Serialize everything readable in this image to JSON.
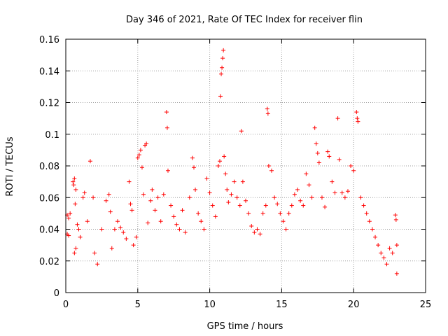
{
  "chart_data": {
    "type": "scatter",
    "title": "Day 346 of 2021, Rate Of TEC Index for receiver flin",
    "xlabel": "GPS time / hours",
    "ylabel": "ROTI / TECUs",
    "xlim": [
      0,
      25
    ],
    "ylim": [
      0,
      0.16
    ],
    "x_ticks": [
      0,
      5,
      10,
      15,
      20,
      25
    ],
    "x_tick_labels": [
      "0",
      "5",
      "10",
      "15",
      "20",
      "25"
    ],
    "y_ticks": [
      0,
      0.02,
      0.04,
      0.06,
      0.08,
      0.1,
      0.12,
      0.14,
      0.16
    ],
    "y_tick_labels": [
      "0",
      "0.02",
      "0.04",
      "0.06",
      "0.08",
      "0.1",
      "0.12",
      "0.14",
      "0.16"
    ],
    "grid": true,
    "marker": "+",
    "color": "#ff0000",
    "series": [
      {
        "points": [
          [
            0.1,
            0.049
          ],
          [
            0.2,
            0.047
          ],
          [
            0.1,
            0.037
          ],
          [
            0.2,
            0.036
          ],
          [
            0.3,
            0.05
          ],
          [
            0.5,
            0.07
          ],
          [
            0.55,
            0.068
          ],
          [
            0.6,
            0.072
          ],
          [
            0.7,
            0.065
          ],
          [
            0.65,
            0.056
          ],
          [
            0.6,
            0.025
          ],
          [
            0.7,
            0.028
          ],
          [
            0.8,
            0.043
          ],
          [
            0.9,
            0.04
          ],
          [
            1.0,
            0.035
          ],
          [
            1.2,
            0.06
          ],
          [
            1.3,
            0.063
          ],
          [
            1.5,
            0.045
          ],
          [
            1.7,
            0.083
          ],
          [
            1.9,
            0.06
          ],
          [
            2.0,
            0.025
          ],
          [
            2.2,
            0.018
          ],
          [
            2.5,
            0.04
          ],
          [
            2.8,
            0.058
          ],
          [
            3.0,
            0.062
          ],
          [
            3.1,
            0.051
          ],
          [
            3.2,
            0.028
          ],
          [
            3.4,
            0.04
          ],
          [
            3.6,
            0.045
          ],
          [
            3.8,
            0.041
          ],
          [
            4.0,
            0.038
          ],
          [
            4.2,
            0.034
          ],
          [
            4.4,
            0.07
          ],
          [
            4.5,
            0.056
          ],
          [
            4.6,
            0.052
          ],
          [
            4.7,
            0.03
          ],
          [
            4.9,
            0.035
          ],
          [
            5.0,
            0.085
          ],
          [
            5.1,
            0.087
          ],
          [
            5.2,
            0.09
          ],
          [
            5.3,
            0.079
          ],
          [
            5.4,
            0.062
          ],
          [
            5.5,
            0.093
          ],
          [
            5.6,
            0.094
          ],
          [
            5.7,
            0.044
          ],
          [
            5.9,
            0.058
          ],
          [
            6.0,
            0.065
          ],
          [
            6.2,
            0.052
          ],
          [
            6.4,
            0.06
          ],
          [
            6.6,
            0.045
          ],
          [
            6.8,
            0.062
          ],
          [
            7.0,
            0.114
          ],
          [
            7.05,
            0.104
          ],
          [
            7.1,
            0.077
          ],
          [
            7.3,
            0.055
          ],
          [
            7.5,
            0.048
          ],
          [
            7.7,
            0.043
          ],
          [
            7.9,
            0.04
          ],
          [
            8.1,
            0.052
          ],
          [
            8.3,
            0.038
          ],
          [
            8.6,
            0.06
          ],
          [
            8.8,
            0.085
          ],
          [
            8.9,
            0.079
          ],
          [
            9.0,
            0.065
          ],
          [
            9.2,
            0.05
          ],
          [
            9.4,
            0.045
          ],
          [
            9.6,
            0.04
          ],
          [
            9.8,
            0.072
          ],
          [
            10.0,
            0.063
          ],
          [
            10.2,
            0.055
          ],
          [
            10.4,
            0.048
          ],
          [
            10.6,
            0.08
          ],
          [
            10.7,
            0.083
          ],
          [
            10.75,
            0.124
          ],
          [
            10.8,
            0.138
          ],
          [
            10.85,
            0.142
          ],
          [
            10.9,
            0.148
          ],
          [
            10.95,
            0.153
          ],
          [
            11.0,
            0.086
          ],
          [
            11.1,
            0.075
          ],
          [
            11.2,
            0.065
          ],
          [
            11.3,
            0.057
          ],
          [
            11.5,
            0.062
          ],
          [
            11.7,
            0.07
          ],
          [
            11.9,
            0.06
          ],
          [
            12.1,
            0.055
          ],
          [
            12.2,
            0.102
          ],
          [
            12.3,
            0.07
          ],
          [
            12.5,
            0.058
          ],
          [
            12.7,
            0.05
          ],
          [
            12.9,
            0.042
          ],
          [
            13.1,
            0.038
          ],
          [
            13.3,
            0.04
          ],
          [
            13.5,
            0.037
          ],
          [
            13.7,
            0.05
          ],
          [
            13.9,
            0.055
          ],
          [
            14.0,
            0.116
          ],
          [
            14.05,
            0.113
          ],
          [
            14.1,
            0.08
          ],
          [
            14.3,
            0.077
          ],
          [
            14.5,
            0.06
          ],
          [
            14.7,
            0.056
          ],
          [
            14.9,
            0.05
          ],
          [
            15.1,
            0.045
          ],
          [
            15.3,
            0.04
          ],
          [
            15.5,
            0.05
          ],
          [
            15.7,
            0.055
          ],
          [
            15.9,
            0.062
          ],
          [
            16.1,
            0.065
          ],
          [
            16.3,
            0.058
          ],
          [
            16.5,
            0.055
          ],
          [
            16.7,
            0.075
          ],
          [
            16.9,
            0.068
          ],
          [
            17.1,
            0.06
          ],
          [
            17.3,
            0.104
          ],
          [
            17.4,
            0.094
          ],
          [
            17.5,
            0.088
          ],
          [
            17.6,
            0.082
          ],
          [
            17.8,
            0.06
          ],
          [
            18.0,
            0.054
          ],
          [
            18.2,
            0.089
          ],
          [
            18.3,
            0.086
          ],
          [
            18.5,
            0.07
          ],
          [
            18.7,
            0.063
          ],
          [
            18.9,
            0.11
          ],
          [
            19.0,
            0.084
          ],
          [
            19.2,
            0.063
          ],
          [
            19.4,
            0.06
          ],
          [
            19.6,
            0.064
          ],
          [
            19.8,
            0.08
          ],
          [
            20.0,
            0.077
          ],
          [
            20.2,
            0.114
          ],
          [
            20.25,
            0.11
          ],
          [
            20.3,
            0.108
          ],
          [
            20.5,
            0.06
          ],
          [
            20.7,
            0.055
          ],
          [
            20.9,
            0.05
          ],
          [
            21.1,
            0.045
          ],
          [
            21.3,
            0.04
          ],
          [
            21.5,
            0.035
          ],
          [
            21.7,
            0.03
          ],
          [
            21.9,
            0.025
          ],
          [
            22.1,
            0.022
          ],
          [
            22.3,
            0.018
          ],
          [
            22.5,
            0.028
          ],
          [
            22.7,
            0.025
          ],
          [
            22.9,
            0.049
          ],
          [
            22.95,
            0.046
          ],
          [
            23.0,
            0.03
          ],
          [
            23.0,
            0.012
          ]
        ]
      }
    ]
  }
}
